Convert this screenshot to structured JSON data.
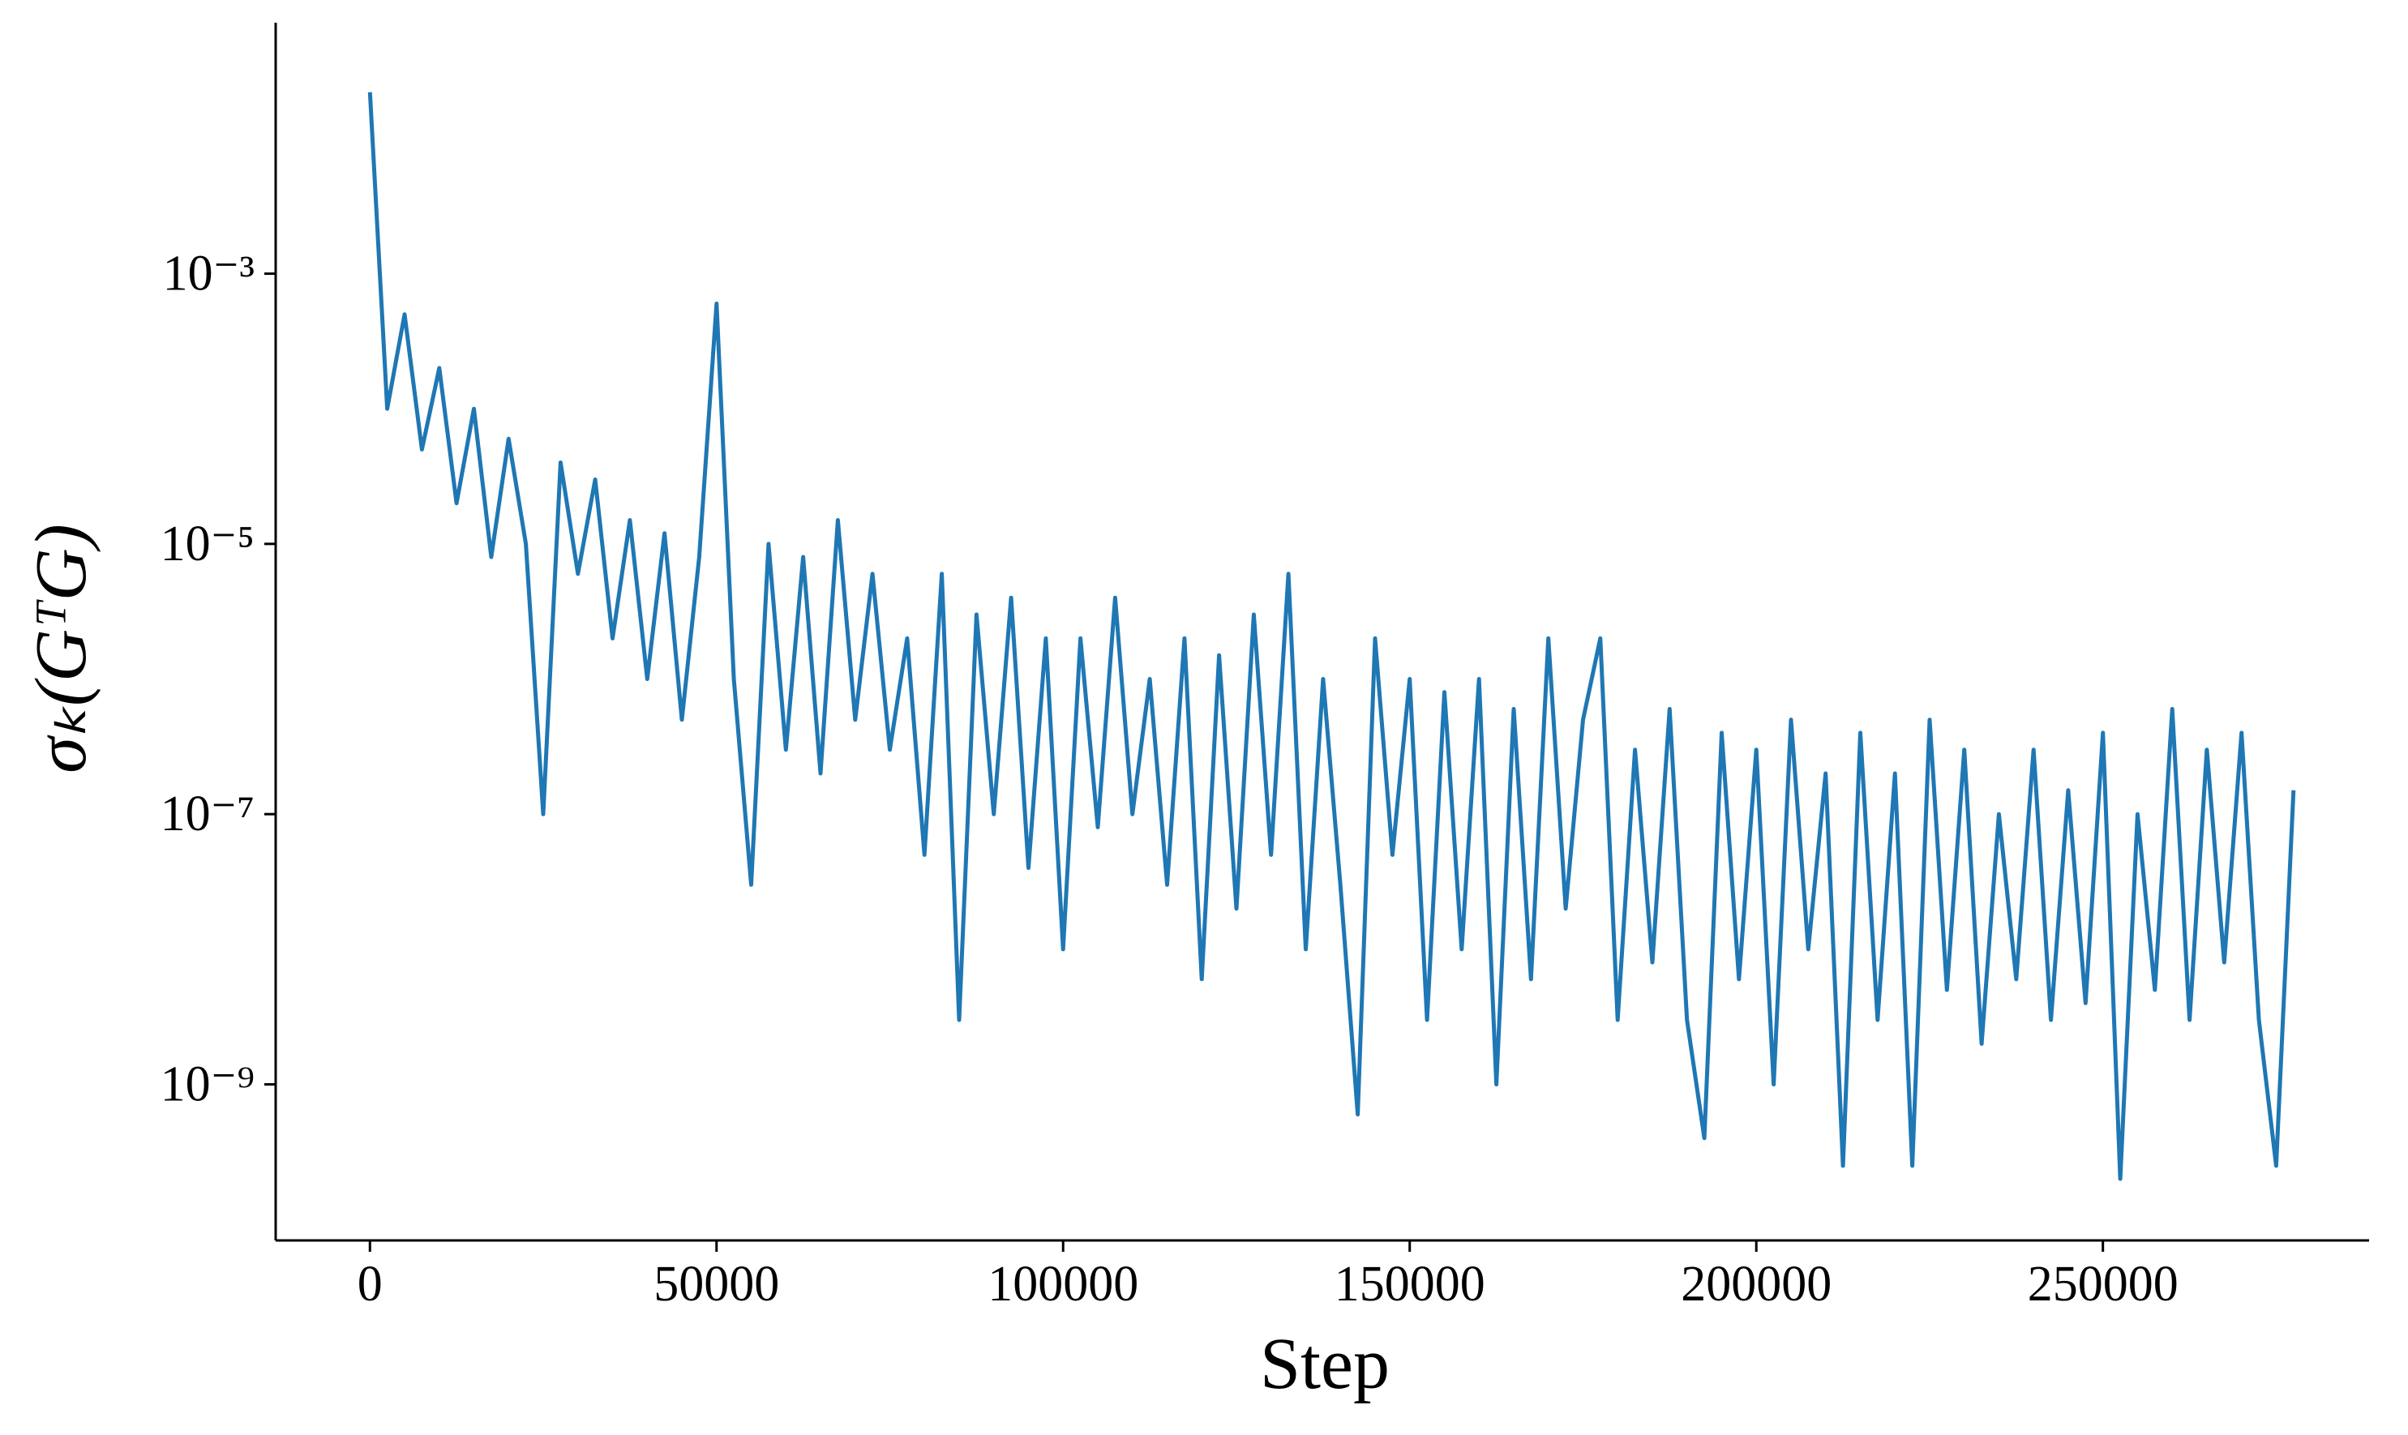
{
  "chart_data": {
    "type": "line",
    "xlabel": "Step",
    "ylabel": "σₖ(GᵀG)",
    "log_y": true,
    "grid": false,
    "xlim": [
      -13600,
      288400
    ],
    "xticks": [
      0,
      50000,
      100000,
      150000,
      200000,
      250000
    ],
    "ylim": [
      7e-11,
      0.072
    ],
    "yticks": [
      {
        "value": 0.001,
        "label": "10⁻³"
      },
      {
        "value": 1e-05,
        "label": "10⁻⁵"
      },
      {
        "value": 1e-07,
        "label": "10⁻⁷"
      },
      {
        "value": 1e-09,
        "label": "10⁻⁹"
      }
    ],
    "x": [
      0,
      2500,
      5000,
      7500,
      10000,
      12500,
      15000,
      17500,
      20000,
      22500,
      25000,
      27500,
      30000,
      32500,
      35000,
      37500,
      40000,
      42500,
      45000,
      47500,
      50000,
      52500,
      55000,
      57500,
      60000,
      62500,
      65000,
      67500,
      70000,
      72500,
      75000,
      77500,
      80000,
      82500,
      85000,
      87500,
      90000,
      92500,
      95000,
      97500,
      100000,
      102500,
      105000,
      107500,
      110000,
      112500,
      115000,
      117500,
      120000,
      122500,
      125000,
      127500,
      130000,
      132500,
      135000,
      137500,
      140000,
      142500,
      145000,
      147500,
      150000,
      152500,
      155000,
      157500,
      160000,
      162500,
      165000,
      167500,
      170000,
      172500,
      175000,
      177500,
      180000,
      182500,
      185000,
      187500,
      190000,
      192500,
      195000,
      197500,
      200000,
      202500,
      205000,
      207500,
      210000,
      212500,
      215000,
      217500,
      220000,
      222500,
      225000,
      227500,
      230000,
      232500,
      235000,
      237500,
      240000,
      242500,
      245000,
      247500,
      250000,
      252500,
      255000,
      257500,
      260000,
      262500,
      265000,
      267500,
      270000,
      272500,
      275000,
      277500
    ],
    "series": [
      {
        "name": "sigma",
        "color": "#1f77b4",
        "values": [
          0.022,
          0.0001,
          0.0005,
          5e-05,
          0.0002,
          2e-05,
          0.0001,
          8e-06,
          6e-05,
          1e-05,
          1e-07,
          4e-05,
          6e-06,
          3e-05,
          2e-06,
          1.5e-05,
          1e-06,
          1.2e-05,
          5e-07,
          8e-06,
          0.0006,
          1e-06,
          3e-08,
          1e-05,
          3e-07,
          8e-06,
          2e-07,
          1.5e-05,
          5e-07,
          6e-06,
          3e-07,
          2e-06,
          5e-08,
          6e-06,
          3e-09,
          3e-06,
          1e-07,
          4e-06,
          4e-08,
          2e-06,
          1e-08,
          2e-06,
          8e-08,
          4e-06,
          1e-07,
          1e-06,
          3e-08,
          2e-06,
          6e-09,
          1.5e-06,
          2e-08,
          3e-06,
          5e-08,
          6e-06,
          1e-08,
          1e-06,
          3e-08,
          6e-10,
          2e-06,
          5e-08,
          1e-06,
          3e-09,
          8e-07,
          1e-08,
          1e-06,
          1e-09,
          6e-07,
          6e-09,
          2e-06,
          2e-08,
          5e-07,
          2e-06,
          3e-09,
          3e-07,
          8e-09,
          6e-07,
          3e-09,
          4e-10,
          4e-07,
          6e-09,
          3e-07,
          1e-09,
          5e-07,
          1e-08,
          2e-07,
          2.5e-10,
          4e-07,
          3e-09,
          2e-07,
          2.5e-10,
          5e-07,
          5e-09,
          3e-07,
          2e-09,
          1e-07,
          6e-09,
          3e-07,
          3e-09,
          1.5e-07,
          4e-09,
          4e-07,
          2e-10,
          1e-07,
          5e-09,
          6e-07,
          3e-09,
          3e-07,
          8e-09,
          4e-07,
          3e-09,
          2.5e-10,
          1.5e-07
        ]
      }
    ]
  }
}
